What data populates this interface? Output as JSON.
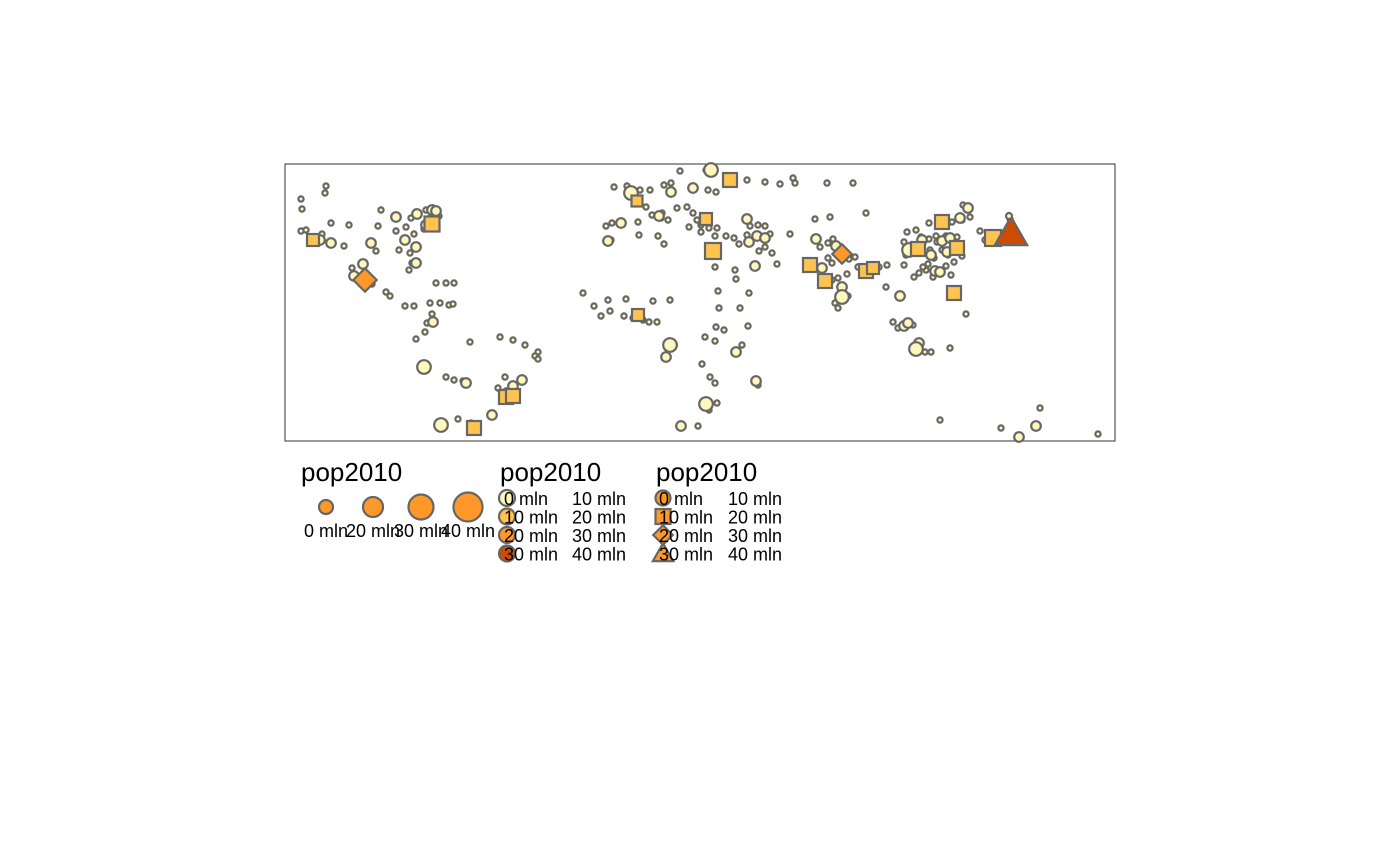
{
  "colors": {
    "lightest": "#FFF7BC",
    "light": "#FEC44F",
    "mid": "#FE9929",
    "dark": "#CC4C02",
    "stroke": "#666666",
    "frame": "#333333"
  },
  "legends": [
    {
      "id": "size",
      "title": "pop2010",
      "kind": "size",
      "color": "#FE9929",
      "items": [
        {
          "label": "0 mln"
        },
        {
          "label": "20 mln"
        },
        {
          "label": "30 mln"
        },
        {
          "label": "40 mln"
        }
      ]
    },
    {
      "id": "color",
      "title": "pop2010",
      "kind": "color",
      "items": [
        {
          "label": "0 mln",
          "label2": "10 mln",
          "color": "#FFF7BC",
          "shape": "circle"
        },
        {
          "label": "10 mln",
          "label2": "20 mln",
          "color": "#FEC44F",
          "shape": "circle"
        },
        {
          "label": "20 mln",
          "label2": "30 mln",
          "color": "#FE9929",
          "shape": "circle"
        },
        {
          "label": "30 mln",
          "label2": "40 mln",
          "color": "#CC4C02",
          "shape": "circle"
        }
      ]
    },
    {
      "id": "shape",
      "title": "pop2010",
      "kind": "shape",
      "color": "#FE9929",
      "items": [
        {
          "label": "0 mln",
          "label2": "10 mln",
          "shape": "circle"
        },
        {
          "label": "10 mln",
          "label2": "20 mln",
          "shape": "square"
        },
        {
          "label": "20 mln",
          "label2": "30 mln",
          "shape": "diamond"
        },
        {
          "label": "30 mln",
          "label2": "40 mln",
          "shape": "triangle"
        }
      ]
    }
  ]
}
